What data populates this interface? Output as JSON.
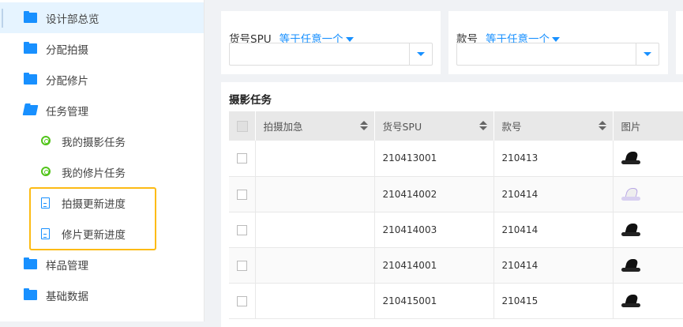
{
  "sidebar": {
    "items": [
      {
        "label": "设计部总览",
        "icon": "folder-icon",
        "active": true
      },
      {
        "label": "分配拍摄",
        "icon": "folder-icon"
      },
      {
        "label": "分配修片",
        "icon": "folder-icon"
      },
      {
        "label": "任务管理",
        "icon": "folder-open-icon"
      },
      {
        "label": "我的摄影任务",
        "icon": "target-icon"
      },
      {
        "label": "我的修片任务",
        "icon": "target-icon"
      },
      {
        "label": "拍摄更新进度",
        "icon": "document-icon"
      },
      {
        "label": "修片更新进度",
        "icon": "document-icon"
      },
      {
        "label": "样品管理",
        "icon": "folder-icon"
      },
      {
        "label": "基础数据",
        "icon": "folder-icon"
      }
    ]
  },
  "filters": [
    {
      "label": "货号SPU",
      "operator": "等于任意一个",
      "value": ""
    },
    {
      "label": "款号",
      "operator": "等于任意一个",
      "value": ""
    }
  ],
  "table": {
    "title": "摄影任务",
    "columns": [
      "拍摄加急",
      "货号SPU",
      "款号",
      "图片"
    ],
    "rows": [
      {
        "urgent": "",
        "spu": "210413001",
        "style": "210413",
        "image": "black-sneaker"
      },
      {
        "urgent": "",
        "spu": "210414002",
        "style": "210414",
        "image": "white-sneaker"
      },
      {
        "urgent": "",
        "spu": "210414003",
        "style": "210414",
        "image": "black-shoe"
      },
      {
        "urgent": "",
        "spu": "210414001",
        "style": "210414",
        "image": "black-boot"
      },
      {
        "urgent": "",
        "spu": "210415001",
        "style": "210415",
        "image": "black-boot"
      }
    ]
  },
  "colors": {
    "accent": "#1890ff",
    "highlight": "#fdbb14",
    "active_bg": "#e6f4ff"
  }
}
